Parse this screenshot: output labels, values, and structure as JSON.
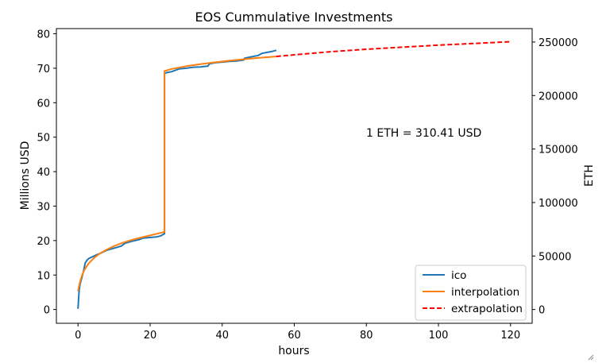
{
  "chart_data": {
    "type": "line",
    "title": "EOS Cummulative Investments",
    "xlabel": "hours",
    "ylabel": "Millions USD",
    "y2label": "ETH",
    "xlim": [
      -6,
      126
    ],
    "ylim": [
      -4,
      81.5
    ],
    "y2lim": [
      -12885,
      262570
    ],
    "xticks": [
      0,
      20,
      40,
      60,
      80,
      100,
      120
    ],
    "yticks": [
      0,
      10,
      20,
      30,
      40,
      50,
      60,
      70,
      80
    ],
    "y2ticks": [
      0,
      50000,
      100000,
      150000,
      200000,
      250000
    ],
    "annotation": "1 ETH = 310.41 USD",
    "legend_position": "lower-right",
    "grid": false,
    "series": [
      {
        "name": "ico",
        "color": "#1f77b4",
        "style": "solid",
        "x": [
          0,
          0.3,
          0.6,
          1.0,
          1.5,
          2.0,
          2.5,
          3,
          4,
          5,
          6,
          7,
          8,
          10,
          12,
          13,
          15,
          17,
          18,
          20,
          22,
          23,
          24,
          24.0,
          24.5,
          26,
          28,
          30,
          32,
          34,
          36,
          36.5,
          38,
          40,
          42,
          44,
          46,
          46.2,
          48,
          50,
          51,
          53,
          54,
          55
        ],
        "y": [
          0.2,
          5.5,
          7.5,
          9,
          11,
          13.5,
          14.3,
          14.8,
          15.3,
          15.8,
          16.2,
          16.7,
          17.2,
          17.8,
          18.4,
          19.2,
          19.8,
          20.3,
          20.7,
          20.9,
          21.1,
          21.4,
          22.0,
          68.5,
          68.7,
          69.0,
          69.8,
          70.0,
          70.3,
          70.4,
          70.6,
          71.3,
          71.6,
          71.8,
          72.0,
          72.1,
          72.4,
          72.9,
          73.3,
          73.7,
          74.3,
          74.7,
          74.9,
          75.2
        ]
      },
      {
        "name": "interpolation",
        "color": "#ff7f0e",
        "style": "solid",
        "x": [
          0,
          0.5,
          1,
          1.5,
          2,
          3,
          4,
          5,
          6,
          8,
          10,
          12,
          14,
          16,
          18,
          20,
          22,
          24,
          24.0,
          26,
          30,
          34,
          38,
          42,
          46,
          50,
          55
        ],
        "y": [
          5.3,
          7.8,
          9.6,
          10.9,
          11.9,
          13.4,
          14.5,
          15.4,
          16.2,
          17.4,
          18.4,
          19.2,
          19.9,
          20.5,
          21.0,
          21.5,
          22.0,
          22.5,
          69.2,
          69.8,
          70.6,
          71.2,
          71.7,
          72.2,
          72.6,
          73.0,
          73.4
        ]
      },
      {
        "name": "extrapolation",
        "color": "#ff0000",
        "style": "dashed",
        "x": [
          55,
          60,
          70,
          80,
          90,
          100,
          110,
          120
        ],
        "y": [
          73.4,
          73.9,
          74.8,
          75.5,
          76.1,
          76.7,
          77.2,
          77.7
        ]
      }
    ]
  }
}
